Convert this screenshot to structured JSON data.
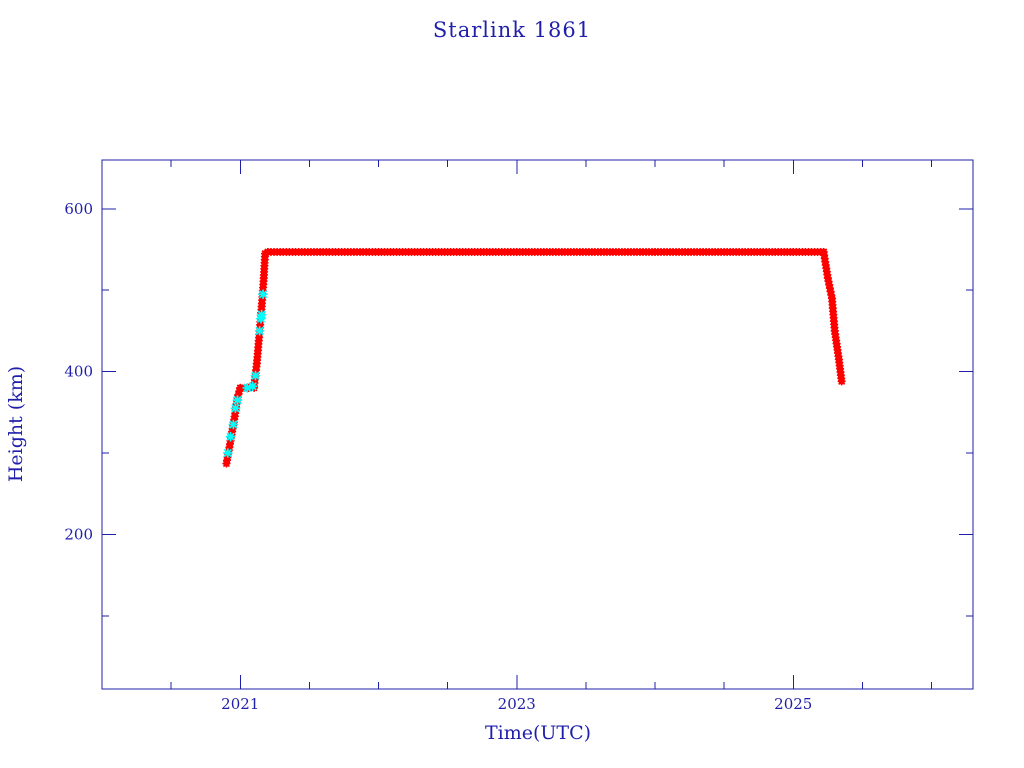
{
  "chart_data": {
    "type": "scatter",
    "title": "Starlink 1861",
    "xlabel": "Time(UTC)",
    "ylabel": "Height (km)",
    "xlim": [
      2020.0,
      2026.3
    ],
    "ylim": [
      10,
      660
    ],
    "x_ticks": [
      {
        "value": 2021,
        "label": "2021"
      },
      {
        "value": 2023,
        "label": "2023"
      },
      {
        "value": 2025,
        "label": "2025"
      }
    ],
    "y_ticks": [
      {
        "value": 200,
        "label": "200"
      },
      {
        "value": 400,
        "label": "400"
      },
      {
        "value": 600,
        "label": "600"
      }
    ],
    "grid": false,
    "colors": {
      "axis": "#1f1faa",
      "main_series": "#ff0000",
      "highlight_series": "#00ffff"
    },
    "series": [
      {
        "color": "#ff0000",
        "marker": "asterisk",
        "segments": [
          [
            [
              2020.9,
              287
            ],
            [
              2020.93,
              315
            ],
            [
              2020.96,
              345
            ],
            [
              2020.98,
              368
            ],
            [
              2021.0,
              380
            ],
            [
              2021.06,
              380
            ],
            [
              2021.1,
              380
            ]
          ],
          [
            [
              2021.1,
              382
            ],
            [
              2021.12,
              410
            ],
            [
              2021.14,
              450
            ],
            [
              2021.155,
              480
            ],
            [
              2021.17,
              515
            ],
            [
              2021.18,
              545
            ],
            [
              2021.2,
              547
            ],
            [
              2022.0,
              547
            ],
            [
              2023.0,
              547
            ],
            [
              2024.0,
              547
            ],
            [
              2025.0,
              547
            ],
            [
              2025.22,
              547
            ]
          ],
          [
            [
              2025.22,
              547
            ],
            [
              2025.25,
              515
            ],
            [
              2025.28,
              490
            ],
            [
              2025.3,
              450
            ],
            [
              2025.33,
              415
            ],
            [
              2025.35,
              388
            ]
          ]
        ]
      },
      {
        "color": "#00ffff",
        "marker": "asterisk",
        "points": [
          [
            2020.91,
            300
          ],
          [
            2020.93,
            320
          ],
          [
            2020.95,
            335
          ],
          [
            2020.965,
            355
          ],
          [
            2020.98,
            365
          ],
          [
            2021.05,
            380
          ],
          [
            2021.09,
            382
          ],
          [
            2021.11,
            395
          ],
          [
            2021.14,
            450
          ],
          [
            2021.15,
            465
          ],
          [
            2021.155,
            470
          ],
          [
            2021.165,
            495
          ]
        ]
      }
    ]
  }
}
